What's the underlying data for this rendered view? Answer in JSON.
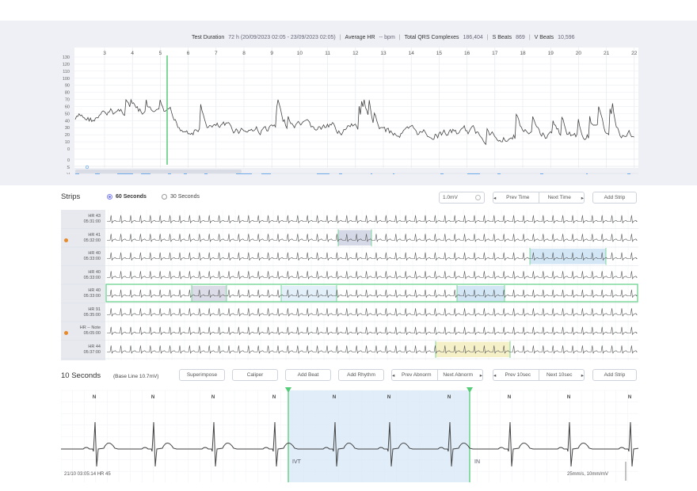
{
  "summary": {
    "test_duration_label": "Test Duration",
    "test_duration_value": "72 h (20/09/2023 02:05 - 23/09/2023 02:05)",
    "average_hr_label": "Average HR",
    "average_hr_value": "-- bpm",
    "total_qrs_label": "Total QRS Complexes",
    "total_qrs_value": "186,404",
    "s_beats_label": "S Beats",
    "s_beats_value": "869",
    "v_beats_label": "V Beats",
    "v_beats_value": "10,596"
  },
  "trend": {
    "x_ticks": [
      "3",
      "4",
      "5",
      "6",
      "7",
      "8",
      "9",
      "10",
      "11",
      "12",
      "13",
      "14",
      "15",
      "16",
      "17",
      "18",
      "19",
      "20",
      "21",
      "22"
    ],
    "y_ticks": [
      "130",
      "120",
      "110",
      "100",
      "90",
      "80",
      "70",
      "60",
      "50",
      "40",
      "30",
      "20",
      "10",
      "0"
    ],
    "row_labels": [
      "0",
      "S",
      "V"
    ],
    "colors": {
      "line": "#444444",
      "cursor": "#55cc77",
      "s_beats": "#5aa0e8",
      "v_beats": "#e85a5a"
    }
  },
  "strips": {
    "title": "Strips",
    "option_60": "60 Seconds",
    "option_30": "30 Seconds",
    "selected_option": "60 Seconds",
    "gain_value": "1.0mV",
    "prev_time_label": "Prev Time",
    "next_time_label": "Next Time",
    "add_strip_label": "Add Strip",
    "rows": [
      {
        "hr": "HR 43",
        "time": "05:31:00",
        "dot": ""
      },
      {
        "hr": "HR 41",
        "time": "05:32:00",
        "dot": "#e88a2a"
      },
      {
        "hr": "HR 40",
        "time": "05:33:00",
        "dot": ""
      },
      {
        "hr": "HR 40",
        "time": "05:33:00",
        "dot": ""
      },
      {
        "hr": "HR 40",
        "time": "05:33:00",
        "dot": ""
      },
      {
        "hr": "HR 91",
        "time": "05:35:00",
        "dot": ""
      },
      {
        "hr": "HR -- Note",
        "time": "05:05:00",
        "dot": "#e88a2a"
      },
      {
        "hr": "HR 44",
        "time": "05:37:00",
        "dot": ""
      }
    ]
  },
  "ten_seconds": {
    "title": "10 Seconds",
    "baseline": "(Base Line 10.7mV)",
    "superimpose_label": "Superimpose",
    "caliper_label": "Caliper",
    "add_beat_label": "Add Beat",
    "add_rhythm_label": "Add Rhythm",
    "prev_abnorm_label": "Prev Abnorm",
    "next_abnorm_label": "Next Abnorm",
    "prev_10sec_label": "Prev 10sec",
    "next_10sec_label": "Next 10sec",
    "add_strip_label": "Add Strip",
    "beat_label": "N",
    "segment_a": "IVT",
    "segment_b": "IN",
    "footer_left": "21/10 03:05:14 HR 45",
    "footer_right": "25mm/s, 10mm/mV"
  }
}
